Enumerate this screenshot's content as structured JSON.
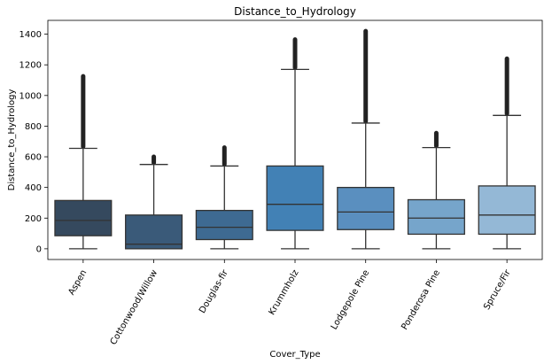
{
  "chart_data": {
    "type": "boxplot",
    "title": "Distance_to_Hydrology",
    "xlabel": "Cover_Type",
    "ylabel": "Distance_to_Hydrology",
    "ylim": [
      -70,
      1490
    ],
    "yticks": [
      0,
      200,
      400,
      600,
      800,
      1000,
      1200,
      1400
    ],
    "categories": [
      "Aspen",
      "Cottonwood/Willow",
      "Douglas-fir",
      "Krummholz",
      "Lodgepole Pine",
      "Ponderosa Pine",
      "Spruce/Fir"
    ],
    "colors": [
      "#35495e",
      "#3a5a79",
      "#3e6a92",
      "#4281b5",
      "#5a8fbf",
      "#76a5cb",
      "#94b8d6"
    ],
    "boxes": [
      {
        "min": 0,
        "q1": 85,
        "median": 185,
        "q3": 315,
        "whisker_high": 655,
        "outlier_max": 1125
      },
      {
        "min": 0,
        "q1": 0,
        "median": 30,
        "q3": 220,
        "whisker_high": 550,
        "outlier_max": 600
      },
      {
        "min": 0,
        "q1": 60,
        "median": 140,
        "q3": 250,
        "whisker_high": 540,
        "outlier_max": 660
      },
      {
        "min": 0,
        "q1": 120,
        "median": 290,
        "q3": 540,
        "whisker_high": 1170,
        "outlier_max": 1365
      },
      {
        "min": 0,
        "q1": 125,
        "median": 240,
        "q3": 400,
        "whisker_high": 820,
        "outlier_max": 1420
      },
      {
        "min": 0,
        "q1": 95,
        "median": 200,
        "q3": 320,
        "whisker_high": 660,
        "outlier_max": 755
      },
      {
        "min": 0,
        "q1": 95,
        "median": 220,
        "q3": 410,
        "whisker_high": 870,
        "outlier_max": 1240
      }
    ]
  }
}
